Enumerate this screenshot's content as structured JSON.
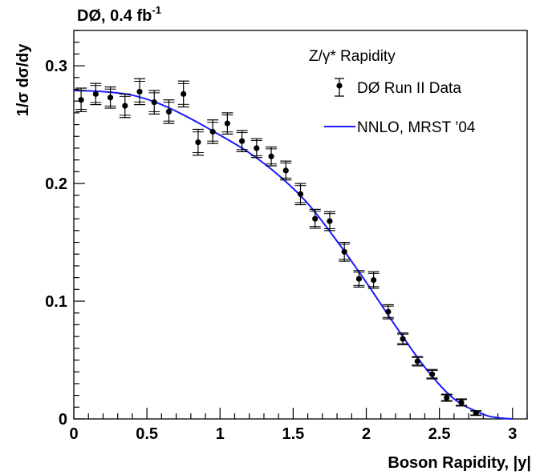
{
  "chart_data": {
    "type": "scatter",
    "experiment_label": "DØ, 0.4 fb",
    "experiment_label_sup": "-1",
    "legend_title": "Z/γ* Rapidity",
    "legend_placement": "top-right",
    "xlabel": "Boson Rapidity, |y|",
    "ylabel": "1/σ dσ/dy",
    "xlim": [
      0,
      3.1
    ],
    "ylim": [
      0,
      0.33
    ],
    "x_ticks": [
      "0",
      "0.5",
      "1",
      "1.5",
      "2",
      "2.5",
      "3"
    ],
    "y_ticks": [
      "0",
      "0.1",
      "0.2",
      "0.3"
    ],
    "grid": false,
    "series": [
      {
        "name": "DØ Run II Data",
        "kind": "points",
        "color": "#000000",
        "x": [
          0.05,
          0.15,
          0.25,
          0.35,
          0.45,
          0.55,
          0.65,
          0.75,
          0.85,
          0.95,
          1.05,
          1.15,
          1.25,
          1.35,
          1.45,
          1.55,
          1.65,
          1.75,
          1.85,
          1.95,
          2.05,
          2.15,
          2.25,
          2.35,
          2.45,
          2.55,
          2.65,
          2.75
        ],
        "y": [
          0.271,
          0.276,
          0.273,
          0.266,
          0.278,
          0.269,
          0.261,
          0.276,
          0.235,
          0.244,
          0.251,
          0.236,
          0.23,
          0.223,
          0.211,
          0.191,
          0.17,
          0.168,
          0.142,
          0.119,
          0.118,
          0.091,
          0.068,
          0.049,
          0.038,
          0.018,
          0.014,
          0.005
        ],
        "yerr": [
          0.01,
          0.009,
          0.009,
          0.01,
          0.011,
          0.01,
          0.01,
          0.011,
          0.011,
          0.01,
          0.009,
          0.009,
          0.008,
          0.008,
          0.008,
          0.009,
          0.008,
          0.008,
          0.008,
          0.007,
          0.007,
          0.006,
          0.005,
          0.004,
          0.004,
          0.003,
          0.003,
          0.002
        ]
      },
      {
        "name": "NNLO, MRST ’04",
        "kind": "line",
        "color": "#1a1aff",
        "x": [
          0,
          0.2,
          0.4,
          0.6,
          0.8,
          1.0,
          1.2,
          1.4,
          1.6,
          1.8,
          2.0,
          2.2,
          2.4,
          2.6,
          2.8,
          2.9,
          3.0
        ],
        "y": [
          0.279,
          0.278,
          0.275,
          0.267,
          0.255,
          0.241,
          0.226,
          0.207,
          0.183,
          0.151,
          0.116,
          0.079,
          0.044,
          0.017,
          0.004,
          0.001,
          0.0
        ]
      }
    ]
  }
}
